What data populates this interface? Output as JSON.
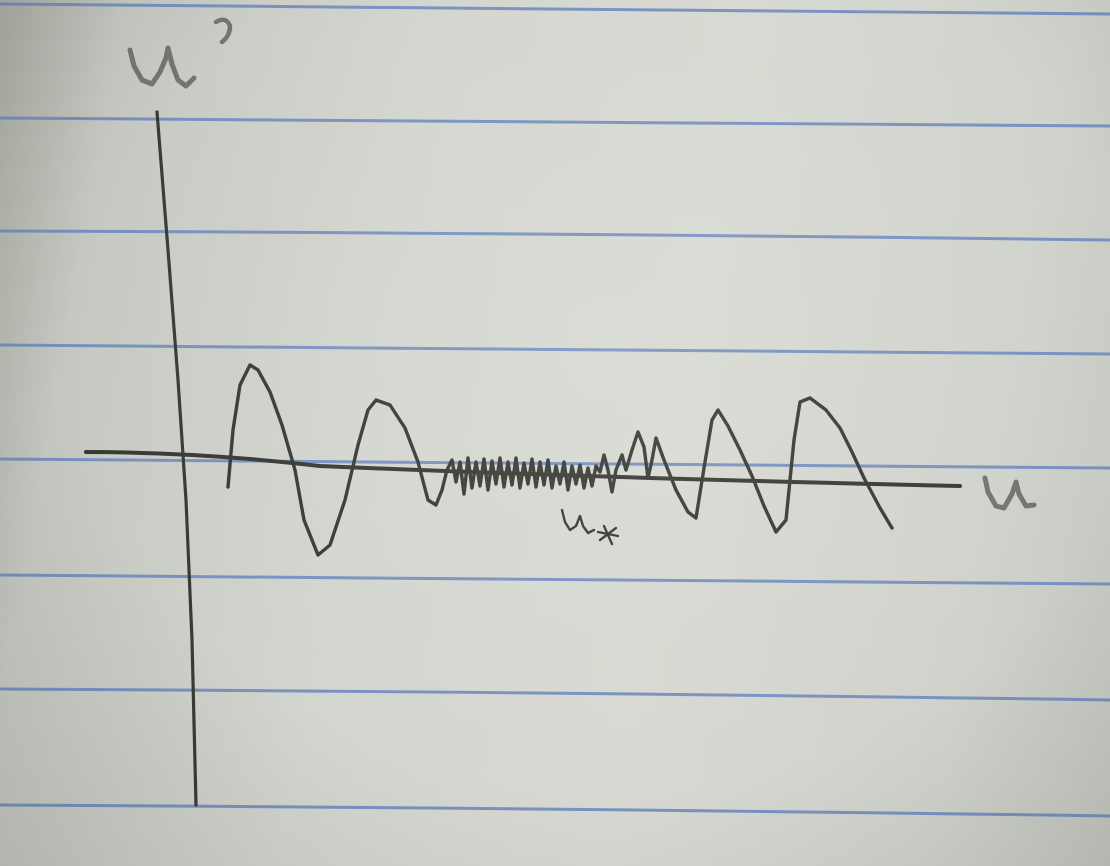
{
  "image": {
    "kind": "hand-drawn pencil sketch on lined notebook paper",
    "colors": {
      "paper": "#d5d8d1",
      "rule_lines": "#6a86bd",
      "pencil": "#3a3a35"
    }
  },
  "labels": {
    "vertical_axis": "u'",
    "horizontal_axis": "u",
    "point": "u*"
  }
}
